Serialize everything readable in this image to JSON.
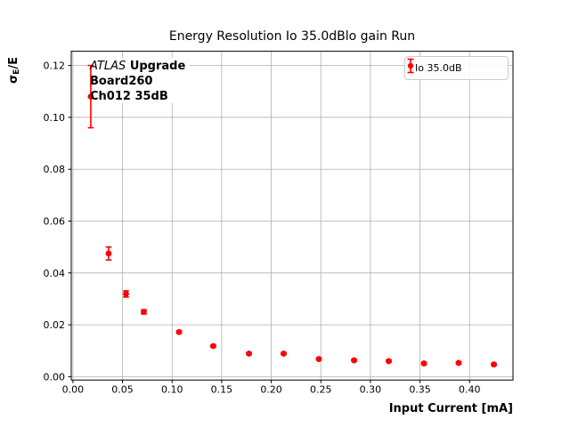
{
  "figure": {
    "annotation": {
      "line1_italic": "ATLAS",
      "line1_bold": "Upgrade",
      "line2": "Board260",
      "line3": "Ch012 35dB"
    },
    "ylabel_parts": {
      "sigma": "σ",
      "sub": "E",
      "rest": "/E"
    }
  },
  "chart_data": {
    "type": "scatter",
    "title": "Energy Resolution Io 35.0dBlo gain Run",
    "xlabel": "Input Current [mA]",
    "ylabel": "σE/E",
    "series": [
      {
        "name": "Io 35.0dB",
        "color": "#ff0000",
        "marker": "circle-with-errorbars",
        "x": [
          0.018,
          0.036,
          0.0535,
          0.0715,
          0.107,
          0.1415,
          0.1775,
          0.2125,
          0.248,
          0.2835,
          0.3185,
          0.354,
          0.389,
          0.4245
        ],
        "y": [
          0.108,
          0.0475,
          0.0319,
          0.025,
          0.0172,
          0.0118,
          0.0089,
          0.0089,
          0.0068,
          0.0063,
          0.006,
          0.0051,
          0.0053,
          0.0047
        ],
        "yerr": [
          0.012,
          0.0025,
          0.0012,
          0.0008,
          0.0005,
          0.0004,
          0.0004,
          0.0004,
          0.0004,
          0.0004,
          0.0004,
          0.0004,
          0.0004,
          0.0004
        ]
      }
    ],
    "xticks": [
      0.0,
      0.05,
      0.1,
      0.15,
      0.2,
      0.25,
      0.3,
      0.35,
      0.4
    ],
    "xtick_labels": [
      "0.00",
      "0.05",
      "0.10",
      "0.15",
      "0.20",
      "0.25",
      "0.30",
      "0.35",
      "0.40"
    ],
    "yticks": [
      0.0,
      0.02,
      0.04,
      0.06,
      0.08,
      0.1,
      0.12
    ],
    "ytick_labels": [
      "0.00",
      "0.02",
      "0.04",
      "0.06",
      "0.08",
      "0.10",
      "0.12"
    ],
    "xlim": [
      -0.0017,
      0.4438
    ],
    "ylim": [
      -0.0013,
      0.1255
    ],
    "grid": true,
    "grid_color": "#b0b0b0",
    "axis_color": "#000000",
    "legend_position": "upper right",
    "legend_label": "Io 35.0dB",
    "annotation_lines": [
      "ATLAS Upgrade",
      "Board260",
      "Ch012 35dB"
    ]
  }
}
